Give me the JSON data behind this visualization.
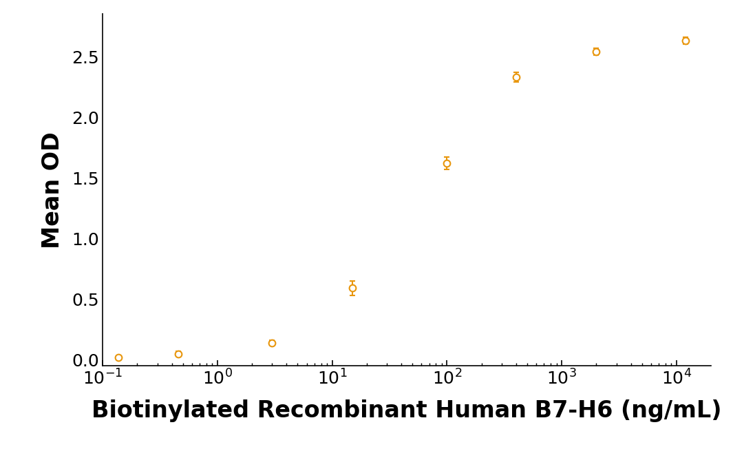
{
  "x_data": [
    0.137,
    0.457,
    3.0,
    15.0,
    100.0,
    400.0,
    2000.0,
    12000.0
  ],
  "y_data": [
    0.02,
    0.05,
    0.14,
    0.59,
    1.62,
    2.33,
    2.54,
    2.63
  ],
  "y_err": [
    0.01,
    0.02,
    0.02,
    0.06,
    0.05,
    0.04,
    0.03,
    0.03
  ],
  "line_color": "#E8960C",
  "marker_color": "#E8960C",
  "ylabel": "Mean OD",
  "xlabel": "Biotinylated Recombinant Human B7-H6 (ng/mL)",
  "ylim": [
    -0.05,
    2.85
  ],
  "yticks": [
    0.0,
    0.5,
    1.0,
    1.5,
    2.0,
    2.5
  ],
  "background_color": "#ffffff",
  "ylabel_fontsize": 24,
  "xlabel_fontsize": 24,
  "tick_fontsize": 18
}
